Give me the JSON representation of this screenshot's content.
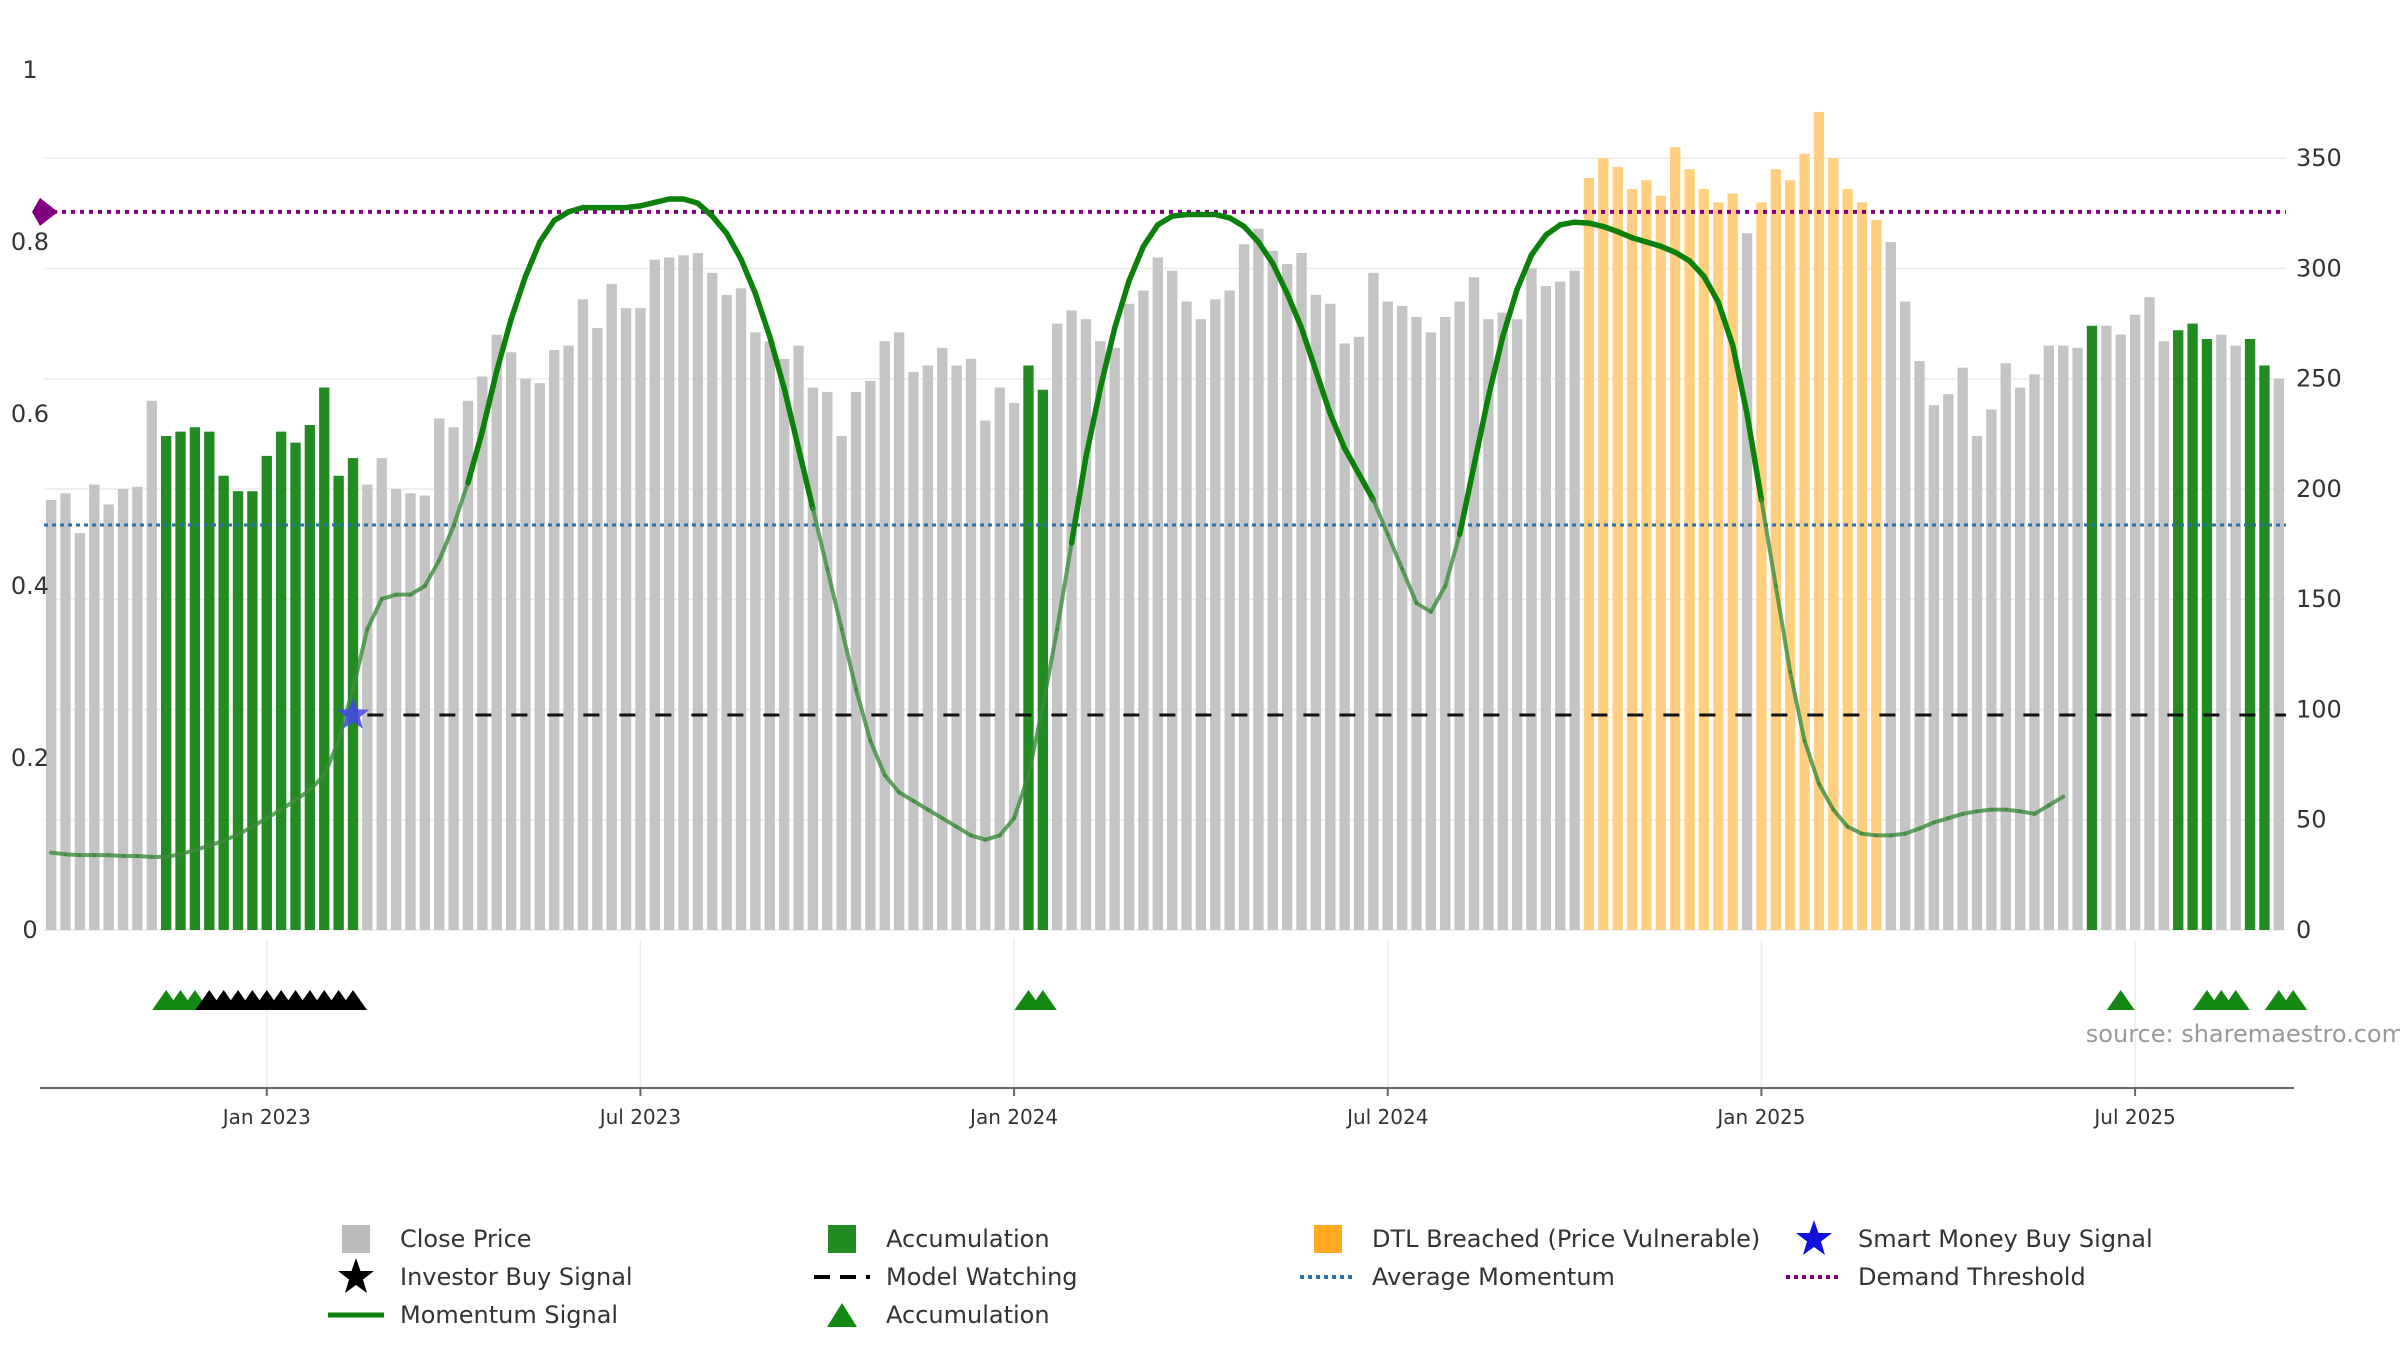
{
  "chart_data": {
    "type": "bar",
    "title": "",
    "source": "source: sharemaestro.com",
    "left_axis": {
      "ticks": [
        "0",
        "0.2",
        "0.4",
        "0.6",
        "0.8",
        "1"
      ],
      "ylim": [
        0,
        1
      ]
    },
    "right_axis": {
      "ticks": [
        "0",
        "50",
        "100",
        "150",
        "200",
        "250",
        "300",
        "350"
      ],
      "ylim": [
        0,
        390
      ]
    },
    "x_ticks": [
      {
        "label": "Jan 2023",
        "index": 15
      },
      {
        "label": "Jul 2023",
        "index": 41
      },
      {
        "label": "Jan 2024",
        "index": 67
      },
      {
        "label": "Jul 2024",
        "index": 93
      },
      {
        "label": "Jan 2025",
        "index": 119
      },
      {
        "label": "Jul 2025",
        "index": 145
      }
    ],
    "close_price": [
      195,
      198,
      180,
      202,
      193,
      200,
      201,
      240,
      224,
      226,
      228,
      226,
      206,
      199,
      199,
      215,
      226,
      221,
      229,
      246,
      206,
      214,
      202,
      214,
      200,
      198,
      197,
      232,
      228,
      240,
      251,
      270,
      262,
      250,
      248,
      263,
      265,
      286,
      273,
      293,
      282,
      282,
      304,
      305,
      306,
      307,
      298,
      288,
      291,
      271,
      267,
      259,
      265,
      246,
      244,
      224,
      244,
      249,
      267,
      271,
      253,
      256,
      264,
      256,
      259,
      231,
      246,
      239,
      256,
      245,
      275,
      281,
      277,
      267,
      264,
      284,
      290,
      305,
      299,
      285,
      277,
      286,
      290,
      311,
      318,
      308,
      302,
      307,
      288,
      284,
      266,
      269,
      298,
      285,
      283,
      278,
      271,
      278,
      285,
      296,
      277,
      280,
      277,
      300,
      292,
      294,
      299,
      341,
      350,
      346,
      336,
      340,
      333,
      355,
      345,
      336,
      330,
      334,
      316,
      330,
      345,
      340,
      352,
      371,
      350,
      336,
      330,
      322,
      312,
      285,
      258,
      238,
      243,
      255,
      224,
      236,
      257,
      246,
      252,
      265,
      265,
      264,
      274,
      274,
      270,
      279,
      287,
      267,
      272,
      275,
      268,
      270,
      265,
      268,
      256,
      250
    ],
    "category": [
      0,
      0,
      0,
      0,
      0,
      0,
      0,
      0,
      1,
      1,
      1,
      1,
      1,
      1,
      1,
      1,
      1,
      1,
      1,
      1,
      1,
      1,
      0,
      0,
      0,
      0,
      0,
      0,
      0,
      0,
      0,
      0,
      0,
      0,
      0,
      0,
      0,
      0,
      0,
      0,
      0,
      0,
      0,
      0,
      0,
      0,
      0,
      0,
      0,
      0,
      0,
      0,
      0,
      0,
      0,
      0,
      0,
      0,
      0,
      0,
      0,
      0,
      0,
      0,
      0,
      0,
      0,
      0,
      1,
      1,
      0,
      0,
      0,
      0,
      0,
      0,
      0,
      0,
      0,
      0,
      0,
      0,
      0,
      0,
      0,
      0,
      0,
      0,
      0,
      0,
      0,
      0,
      0,
      0,
      0,
      0,
      0,
      0,
      0,
      0,
      0,
      0,
      0,
      0,
      0,
      0,
      0,
      2,
      2,
      2,
      2,
      2,
      2,
      2,
      2,
      2,
      2,
      2,
      0,
      2,
      2,
      2,
      2,
      2,
      2,
      2,
      2,
      2,
      0,
      0,
      0,
      0,
      0,
      0,
      0,
      0,
      0,
      0,
      0,
      0,
      0,
      0,
      1,
      0,
      0,
      0,
      0,
      0,
      1,
      1,
      1,
      0,
      0,
      1,
      1
    ],
    "momentum": [
      0.09,
      0.088,
      0.087,
      0.087,
      0.087,
      0.086,
      0.086,
      0.085,
      0.085,
      0.088,
      0.093,
      0.098,
      0.104,
      0.111,
      0.12,
      0.13,
      0.14,
      0.151,
      0.163,
      0.18,
      0.22,
      0.28,
      0.35,
      0.385,
      0.39,
      0.39,
      0.4,
      0.43,
      0.47,
      0.52,
      0.58,
      0.65,
      0.71,
      0.76,
      0.8,
      0.825,
      0.835,
      0.84,
      0.84,
      0.84,
      0.84,
      0.842,
      0.846,
      0.85,
      0.85,
      0.845,
      0.83,
      0.81,
      0.78,
      0.74,
      0.69,
      0.63,
      0.56,
      0.49,
      0.42,
      0.35,
      0.28,
      0.22,
      0.18,
      0.16,
      0.15,
      0.14,
      0.13,
      0.12,
      0.11,
      0.105,
      0.11,
      0.13,
      0.18,
      0.26,
      0.35,
      0.45,
      0.55,
      0.63,
      0.7,
      0.755,
      0.795,
      0.82,
      0.83,
      0.832,
      0.832,
      0.832,
      0.828,
      0.818,
      0.8,
      0.775,
      0.74,
      0.7,
      0.65,
      0.6,
      0.56,
      0.53,
      0.5,
      0.46,
      0.42,
      0.38,
      0.37,
      0.4,
      0.46,
      0.54,
      0.62,
      0.69,
      0.745,
      0.785,
      0.808,
      0.82,
      0.823,
      0.822,
      0.818,
      0.812,
      0.805,
      0.8,
      0.795,
      0.788,
      0.778,
      0.76,
      0.73,
      0.68,
      0.6,
      0.5,
      0.4,
      0.3,
      0.22,
      0.17,
      0.14,
      0.12,
      0.112,
      0.11,
      0.11,
      0.112,
      0.118,
      0.125,
      0.13,
      0.135,
      0.138,
      0.14,
      0.14,
      0.138,
      0.135,
      0.145,
      0.155
    ],
    "model_watching": {
      "value": 0.25,
      "from_index": 22
    },
    "average_momentum": 0.471,
    "demand_threshold": 0.835,
    "smart_money_buy_signal": [
      {
        "index": 21,
        "value": 0.25
      }
    ],
    "accumulation_triangles": [
      8,
      9,
      10,
      68,
      69,
      144,
      150,
      151,
      152,
      155,
      156
    ],
    "investor_buy_triangles": [
      11,
      12,
      13,
      14,
      15,
      16,
      17,
      18,
      19,
      20,
      21
    ]
  },
  "legend": [
    {
      "label": "Close Price",
      "symbol": "gray-square",
      "color": "#bbbbbb"
    },
    {
      "label": "Investor Buy Signal",
      "symbol": "black-star",
      "color": "#000000"
    },
    {
      "label": "Momentum Signal",
      "symbol": "green-line",
      "color": "#0b800b"
    },
    {
      "label": "Accumulation",
      "symbol": "green-square",
      "color": "#228b22"
    },
    {
      "label": "Model Watching",
      "symbol": "black-dash",
      "color": "#000000"
    },
    {
      "label": "Accumulation",
      "symbol": "green-triangle",
      "color": "#138813"
    },
    {
      "label": "DTL Breached (Price Vulnerable)",
      "symbol": "orange-square",
      "color": "#ffa91f"
    },
    {
      "label": "Average Momentum",
      "symbol": "blue-dotted",
      "color": "#2a6fa8"
    },
    {
      "label": "Smart Money Buy Signal",
      "symbol": "blue-star",
      "color": "#1111dd"
    },
    {
      "label": "Demand Threshold",
      "symbol": "purple-dotted",
      "color": "#800080"
    }
  ],
  "colors": {
    "close": "#c4c4c4",
    "accumulation": "#228b22",
    "dtl": "#ffcf80",
    "momentum_strong": "#0b800b",
    "momentum_weak": "#3c8c3c",
    "triangle_green": "#138813",
    "triangle_black": "#000000",
    "avg": "#2a6fa8",
    "demand": "#800080",
    "smart": "#4444ee"
  }
}
